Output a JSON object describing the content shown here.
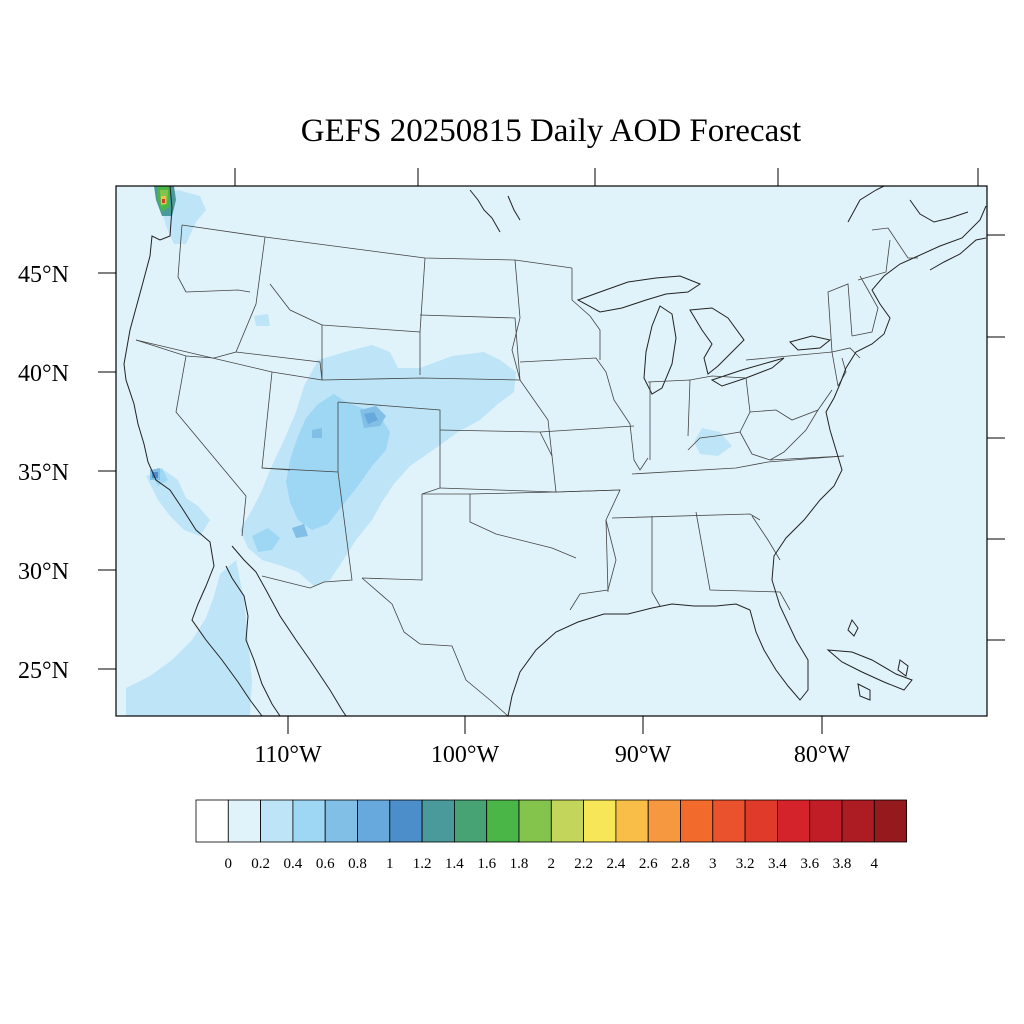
{
  "title": "GEFS 20250815 Daily AOD Forecast",
  "lat_labels": [
    "45°N",
    "40°N",
    "35°N",
    "30°N",
    "25°N"
  ],
  "lon_labels": [
    "110°W",
    "100°W",
    "90°W",
    "80°W"
  ],
  "colorbar": {
    "colors": [
      "#ffffff",
      "#e0f3fb",
      "#bde5f7",
      "#9ed7f3",
      "#82bfe6",
      "#68a9dd",
      "#4c8ec9",
      "#4a9a9c",
      "#47a274",
      "#4ab648",
      "#84c44d",
      "#c3d55a",
      "#f7e758",
      "#f8be48",
      "#f69840",
      "#f26b2c",
      "#ea512d",
      "#e03b2a",
      "#d4232b",
      "#c01d27",
      "#ad1c22",
      "#951a1d"
    ],
    "labels": [
      "0",
      "0.2",
      "0.4",
      "0.6",
      "0.8",
      "1",
      "1.2",
      "1.4",
      "1.6",
      "1.8",
      "2",
      "2.2",
      "2.4",
      "2.6",
      "2.8",
      "3",
      "3.2",
      "3.4",
      "3.6",
      "3.8",
      "4"
    ]
  },
  "map": {
    "background_color": "#e0f3fa"
  }
}
